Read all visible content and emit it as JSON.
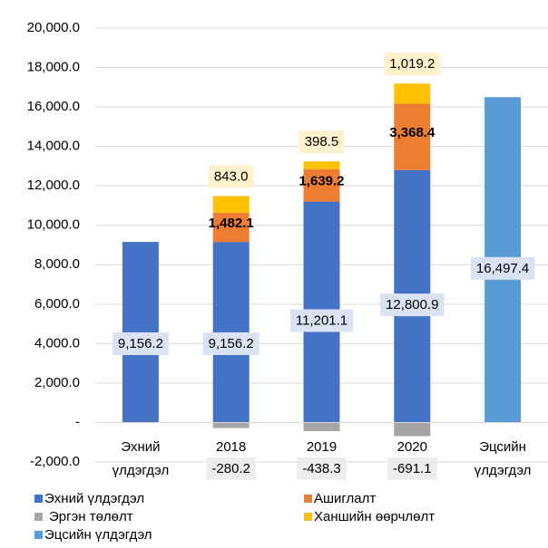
{
  "chart_data": {
    "type": "stacked_bar",
    "categories": [
      "Эхний үлдэгдэл",
      "2018",
      "2019",
      "2020",
      "Эцсийн үлдэгдэл"
    ],
    "series": [
      {
        "name": "Эхний үлдэгдэл",
        "color": "#4472c4",
        "values": [
          9156.2,
          9156.2,
          11201.1,
          12800.9,
          null
        ],
        "value_labels": [
          "9,156.2",
          "9,156.2",
          "11,201.1",
          "12,800.9",
          null
        ]
      },
      {
        "name": "Ашиглалт",
        "color": "#ed7d31",
        "values": [
          null,
          1482.1,
          1639.2,
          3368.4,
          null
        ],
        "value_labels": [
          null,
          "1,482.1",
          "1,639.2",
          "3,368.4",
          null
        ]
      },
      {
        "name": "Эргэн төлөлт",
        "color": "#a5a5a5",
        "values": [
          null,
          -280.2,
          -438.3,
          -691.1,
          null
        ],
        "value_labels": [
          null,
          "-280.2",
          "-438.3",
          "-691.1",
          null
        ]
      },
      {
        "name": "Ханшийн өөрчлөлт",
        "color": "#ffc000",
        "values": [
          null,
          843.0,
          398.5,
          1019.2,
          null
        ],
        "value_labels": [
          null,
          "843.0",
          "398.5",
          "1,019.2",
          null
        ]
      },
      {
        "name": "Эцсийн үлдэгдэл",
        "color": "#5b9bd5",
        "values": [
          null,
          null,
          null,
          null,
          16497.4
        ],
        "value_labels": [
          null,
          null,
          null,
          null,
          "16,497.4"
        ]
      }
    ],
    "ylim": [
      -2000,
      20000
    ],
    "yticks": [
      {
        "value": -2000,
        "label": "-2,000.0"
      },
      {
        "value": 0,
        "label": "-"
      },
      {
        "value": 2000,
        "label": "2,000.0"
      },
      {
        "value": 4000,
        "label": "4,000.0"
      },
      {
        "value": 6000,
        "label": "6,000.0"
      },
      {
        "value": 8000,
        "label": "8,000.0"
      },
      {
        "value": 10000,
        "label": "10,000.0"
      },
      {
        "value": 12000,
        "label": "12,000.0"
      },
      {
        "value": 14000,
        "label": "14,000.0"
      },
      {
        "value": 16000,
        "label": "16,000.0"
      },
      {
        "value": 18000,
        "label": "18,000.0"
      },
      {
        "value": 20000,
        "label": "20,000.0"
      }
    ],
    "grid": true
  }
}
